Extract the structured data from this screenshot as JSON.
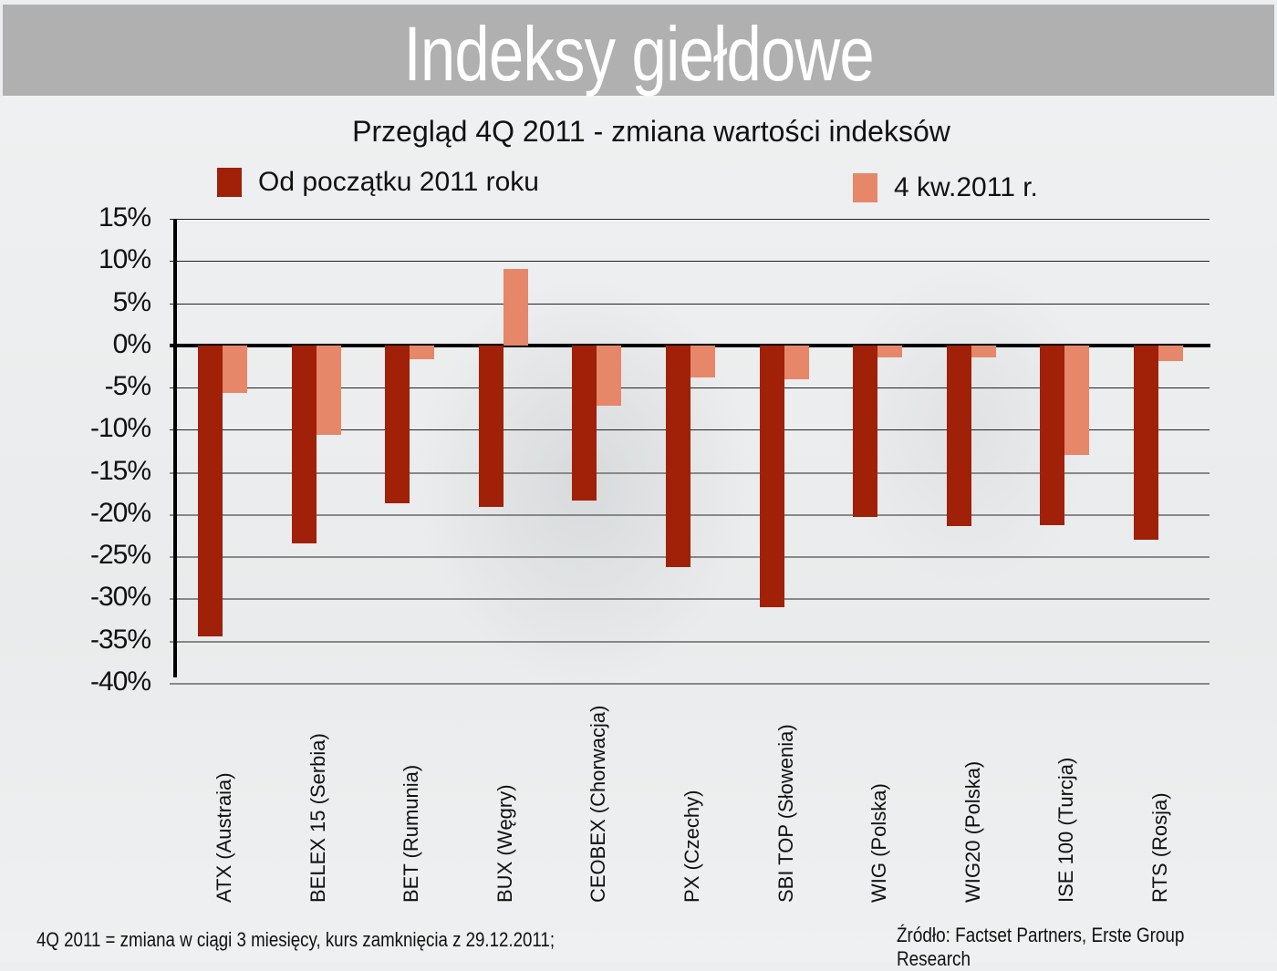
{
  "slide": {
    "title": "Indeksy giełdowe",
    "footnote": "4Q 2011 = zmiana w ciągi 3 miesięcy, kurs zamknięcia z  29.12.2011;",
    "source": "Źródło: Factset Partners, Erste Group Research"
  },
  "colors": {
    "title_bar": "#b0b0b0",
    "series_ytd": "#a02008",
    "series_q4": "#e6876a"
  },
  "chart_data": {
    "type": "bar",
    "title": "Przegląd 4Q 2011 - zmiana wartości indeksów",
    "xlabel": "",
    "ylabel": "",
    "ylim": [
      -40,
      15
    ],
    "yticks": [
      "15%",
      "10%",
      "5%",
      "0%",
      "-5%",
      "-10%",
      "-15%",
      "-20%",
      "-25%",
      "-30%",
      "-35%",
      "-40%"
    ],
    "grid": true,
    "legend_position": "top",
    "categories": [
      "ATX (Austraia)",
      "BELEX 15 (Serbia)",
      "BET (Rumunia)",
      "BUX (Węgry)",
      "CEOBEX (Chorwacja)",
      "PX (Czechy)",
      "SBI TOP (Słowenia)",
      "WIG (Polska)",
      "WIG20 (Polska)",
      "ISE 100 (Turcja)",
      "RTS (Rosja)"
    ],
    "series": [
      {
        "name": "Od początku 2011 roku",
        "color": "#a02008",
        "values": [
          -34.5,
          -23.5,
          -18.7,
          -19.1,
          -18.4,
          -26.3,
          -31.0,
          -20.3,
          -21.4,
          -21.3,
          -23.0
        ]
      },
      {
        "name": "4 kw.2011 r.",
        "color": "#e6876a",
        "values": [
          -5.6,
          -10.6,
          -1.6,
          9.1,
          -7.1,
          -3.8,
          -4.0,
          -1.4,
          -1.4,
          -13.0,
          -1.8
        ]
      }
    ]
  }
}
